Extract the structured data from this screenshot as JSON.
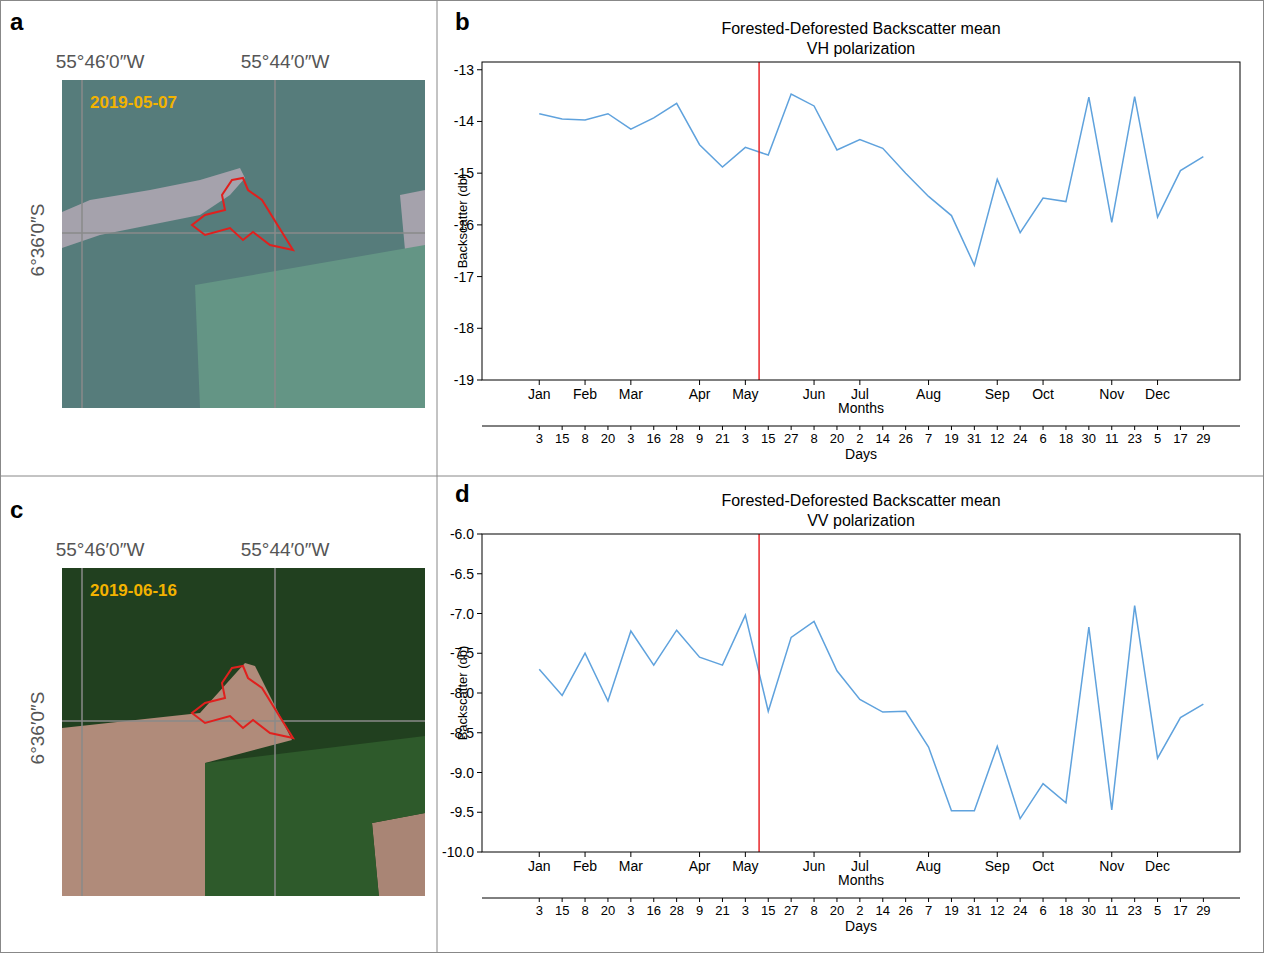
{
  "chart_data": [
    {
      "type": "line",
      "panel_label": "b",
      "title": "Forested-Deforested Backscatter mean",
      "subtitle": "VH polarization",
      "y_label": "Backscatter (db)",
      "x_label": "Months",
      "x2_label": "Days",
      "categories": [
        "3",
        "15",
        "8",
        "20",
        "3",
        "16",
        "28",
        "9",
        "21",
        "3",
        "15",
        "27",
        "8",
        "20",
        "2",
        "14",
        "26",
        "7",
        "19",
        "31",
        "12",
        "24",
        "6",
        "18",
        "30",
        "11",
        "23",
        "5",
        "17",
        "29"
      ],
      "month_ticks": [
        {
          "value": 0,
          "label": "Jan"
        },
        {
          "value": 2,
          "label": "Feb"
        },
        {
          "value": 4,
          "label": "Mar"
        },
        {
          "value": 7,
          "label": "Apr"
        },
        {
          "value": 9,
          "label": "May"
        },
        {
          "value": 12,
          "label": "Jun"
        },
        {
          "value": 14,
          "label": "Jul"
        },
        {
          "value": 17,
          "label": "Aug"
        },
        {
          "value": 20,
          "label": "Sep"
        },
        {
          "value": 22,
          "label": "Oct"
        },
        {
          "value": 25,
          "label": "Nov"
        },
        {
          "value": 27,
          "label": "Dec"
        }
      ],
      "xlim": [
        -2.5,
        30.6
      ],
      "ylim": [
        -19,
        -12.85
      ],
      "yticks": [
        -19,
        -18,
        -17,
        -16,
        -15,
        -14,
        -13
      ],
      "values": [
        -13.85,
        -13.95,
        -13.97,
        -13.85,
        -14.15,
        -13.93,
        -13.65,
        -14.45,
        -14.88,
        -14.5,
        -14.65,
        -13.47,
        -13.7,
        -14.55,
        -14.35,
        -14.52,
        -15.0,
        -15.45,
        -15.82,
        -16.78,
        -15.12,
        -16.15,
        -15.48,
        -15.55,
        -13.53,
        -15.95,
        -13.52,
        -15.85,
        -14.95,
        -14.68
      ],
      "color": "#5fa2dd",
      "vline": {
        "value": 9.6,
        "color": "#e8262a"
      }
    },
    {
      "type": "line",
      "panel_label": "d",
      "title": "Forested-Deforested Backscatter mean",
      "subtitle": "VV polarization",
      "y_label": "Backscatter (db)",
      "x_label": "Months",
      "x2_label": "Days",
      "categories": [
        "3",
        "15",
        "8",
        "20",
        "3",
        "16",
        "28",
        "9",
        "21",
        "3",
        "15",
        "27",
        "8",
        "20",
        "2",
        "14",
        "26",
        "7",
        "19",
        "31",
        "12",
        "24",
        "6",
        "18",
        "30",
        "11",
        "23",
        "5",
        "17",
        "29"
      ],
      "month_ticks": [
        {
          "value": 0,
          "label": "Jan"
        },
        {
          "value": 2,
          "label": "Feb"
        },
        {
          "value": 4,
          "label": "Mar"
        },
        {
          "value": 7,
          "label": "Apr"
        },
        {
          "value": 9,
          "label": "May"
        },
        {
          "value": 12,
          "label": "Jun"
        },
        {
          "value": 14,
          "label": "Jul"
        },
        {
          "value": 17,
          "label": "Aug"
        },
        {
          "value": 20,
          "label": "Sep"
        },
        {
          "value": 22,
          "label": "Oct"
        },
        {
          "value": 25,
          "label": "Nov"
        },
        {
          "value": 27,
          "label": "Dec"
        }
      ],
      "xlim": [
        -2.5,
        30.6
      ],
      "ylim": [
        -10,
        -6
      ],
      "yticks": [
        {
          "value": -10,
          "label": "-10.0"
        },
        {
          "value": -9.5,
          "label": "-9.5"
        },
        {
          "value": -9,
          "label": "-9.0"
        },
        {
          "value": -8.5,
          "label": "-8.5"
        },
        {
          "value": -8,
          "label": "-8.0"
        },
        {
          "value": -7.5,
          "label": "-7.5"
        },
        {
          "value": -7,
          "label": "-7.0"
        },
        {
          "value": -6.5,
          "label": "-6.5"
        },
        {
          "value": -6,
          "label": "-6.0"
        }
      ],
      "values": [
        -7.7,
        -8.03,
        -7.5,
        -8.1,
        -7.22,
        -7.65,
        -7.21,
        -7.55,
        -7.65,
        -7.02,
        -8.23,
        -7.3,
        -7.1,
        -7.72,
        -8.08,
        -8.24,
        -8.23,
        -8.68,
        -9.48,
        -9.48,
        -8.67,
        -9.58,
        -9.14,
        -9.38,
        -7.17,
        -9.47,
        -6.9,
        -8.82,
        -8.31,
        -8.14
      ],
      "color": "#5fa2dd",
      "vline": {
        "value": 9.6,
        "color": "#e8262a"
      }
    }
  ],
  "images": [
    {
      "panel_label": "a",
      "date": "2019-05-07",
      "lon_labels": [
        "55°46′0″W",
        "55°44′0″W"
      ],
      "lat_label": "6°36′0″S"
    },
    {
      "panel_label": "c",
      "date": "2019-06-16",
      "lon_labels": [
        "55°46′0″W",
        "55°44′0″W"
      ],
      "lat_label": "6°36′0″S"
    }
  ]
}
